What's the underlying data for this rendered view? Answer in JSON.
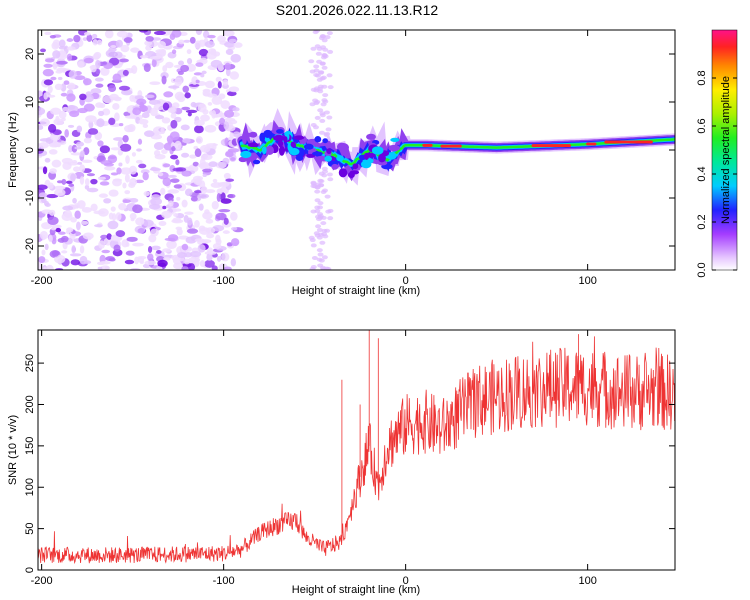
{
  "title": "S201.2026.022.11.13.R12",
  "colors": {
    "background": "#ffffff",
    "spectro_low": "#8a2be2",
    "snr_line": "#ee3333",
    "axis": "#000000"
  },
  "chart_data": [
    {
      "type": "heatmap",
      "name": "spectrogram",
      "xlabel": "Height of straight line (km)",
      "ylabel": "Frequency (Hz)",
      "xlim": [
        -202,
        148
      ],
      "ylim": [
        -25,
        25
      ],
      "xticks": [
        -200,
        -100,
        0,
        100
      ],
      "xtick_labels": [
        "-200",
        "-100",
        "0",
        "100"
      ],
      "yticks": [
        20,
        10,
        0,
        -10,
        -20
      ],
      "ytick_labels": [
        "20",
        "10",
        "0",
        "-10",
        "-20"
      ],
      "ridge": [
        [
          -90,
          1
        ],
        [
          -80,
          0
        ],
        [
          -70,
          3
        ],
        [
          -60,
          1
        ],
        [
          -50,
          0
        ],
        [
          -40,
          -1
        ],
        [
          -30,
          -3
        ],
        [
          -20,
          0
        ],
        [
          -10,
          -2
        ],
        [
          0,
          1
        ],
        [
          10,
          1
        ],
        [
          50,
          0.5
        ],
        [
          100,
          1.2
        ],
        [
          148,
          2.2
        ]
      ],
      "noise_region": [
        -202,
        -92
      ],
      "colorbar": {
        "label": "Normalized spectral amplitude",
        "ticks": [
          0.0,
          0.2,
          0.4,
          0.6,
          0.8
        ],
        "tick_labels": [
          "0.0",
          "0.2",
          "0.4",
          "0.6",
          "0.8"
        ],
        "range": [
          0,
          1
        ]
      }
    },
    {
      "type": "line",
      "name": "snr",
      "xlabel": "Height of straight line (km)",
      "ylabel": "SNR (10 * v/v)",
      "xlim": [
        -202,
        148
      ],
      "ylim": [
        0,
        290
      ],
      "xticks": [
        -200,
        -100,
        0,
        100
      ],
      "xtick_labels": [
        "-200",
        "-100",
        "0",
        "100"
      ],
      "yticks": [
        0,
        50,
        100,
        150,
        200,
        250
      ],
      "ytick_labels": [
        "0",
        "50",
        "100",
        "150",
        "200",
        "250"
      ],
      "envelope": [
        [
          -202,
          18
        ],
        [
          -150,
          18
        ],
        [
          -100,
          20
        ],
        [
          -90,
          25
        ],
        [
          -80,
          45
        ],
        [
          -70,
          55
        ],
        [
          -60,
          60
        ],
        [
          -55,
          40
        ],
        [
          -45,
          25
        ],
        [
          -35,
          35
        ],
        [
          -28,
          90
        ],
        [
          -20,
          150
        ],
        [
          -15,
          100
        ],
        [
          -10,
          150
        ],
        [
          0,
          175
        ],
        [
          10,
          180
        ],
        [
          20,
          170
        ],
        [
          30,
          190
        ],
        [
          40,
          205
        ],
        [
          60,
          215
        ],
        [
          80,
          220
        ],
        [
          100,
          222
        ],
        [
          120,
          215
        ],
        [
          148,
          215
        ]
      ],
      "spikes": [
        [
          -20,
          290
        ],
        [
          -15,
          280
        ],
        [
          95,
          285
        ],
        [
          -35,
          230
        ],
        [
          -25,
          200
        ]
      ]
    }
  ]
}
